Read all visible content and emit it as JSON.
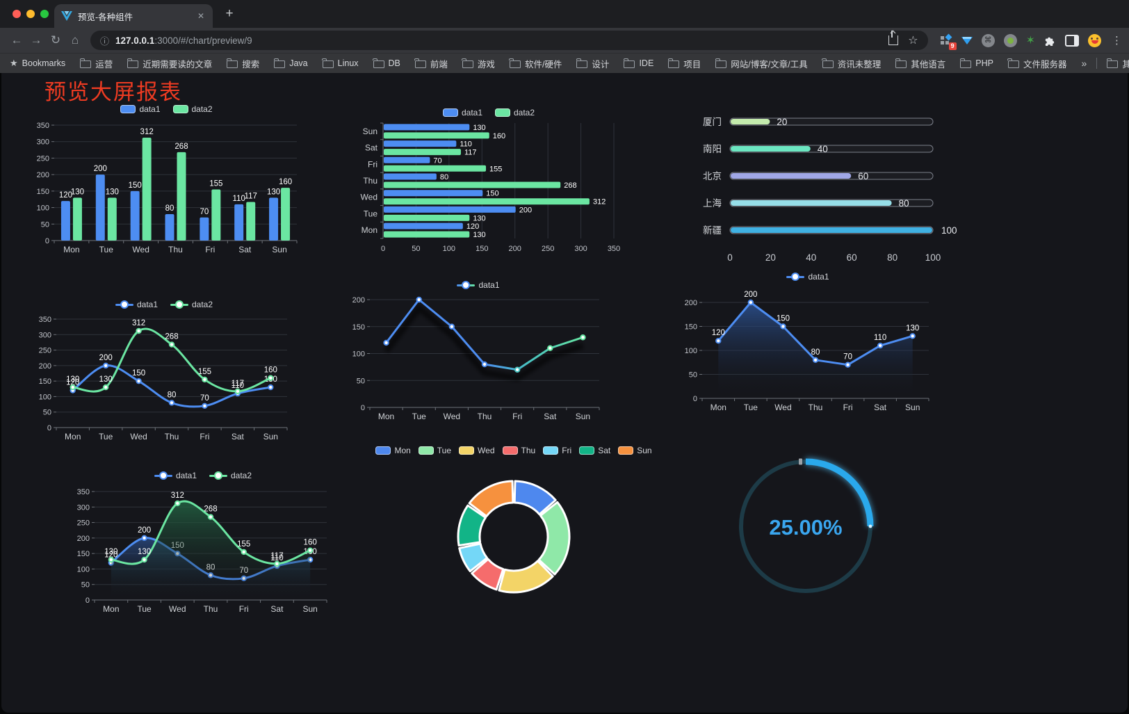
{
  "browser": {
    "tab": {
      "title": "预览-各种组件"
    },
    "url": {
      "host": "127.0.0.1",
      "rest": ":3000/#/chart/preview/9"
    },
    "ext_badge": "9",
    "bookmarks_label": "Bookmarks",
    "bookmarks": [
      "运营",
      "近期需要读的文章",
      "搜索",
      "Java",
      "Linux",
      "DB",
      "前端",
      "游戏",
      "软件/硬件",
      "设计",
      "IDE",
      "项目",
      "网站/博客/文章/工具",
      "资讯未整理",
      "其他语言",
      "PHP",
      "文件服务器"
    ],
    "overflow": "»",
    "other_bookmarks": "其他书签"
  },
  "icons": {
    "back": "←",
    "forward": "→",
    "reload": "↻",
    "home": "⌂",
    "info": "ⓘ",
    "close": "✕",
    "new_tab": "+",
    "star_outline": "☆",
    "menu_dots": "⋮",
    "bookmarks_star": "★",
    "cmd": "⌘",
    "green_star": "✶"
  },
  "page": {
    "title": "预览大屏报表",
    "title_color": "#ee3b22"
  },
  "chart_data": [
    {
      "id": "bar-grouped",
      "type": "bar",
      "categories": [
        "Mon",
        "Tue",
        "Wed",
        "Thu",
        "Fri",
        "Sat",
        "Sun"
      ],
      "series": [
        {
          "name": "data1",
          "color": "#4d8df2",
          "values": [
            120,
            200,
            150,
            80,
            70,
            110,
            130
          ]
        },
        {
          "name": "data2",
          "color": "#6be6a2",
          "values": [
            130,
            130,
            312,
            268,
            155,
            117,
            160
          ]
        }
      ],
      "ylim": [
        0,
        350
      ],
      "ystep": 50,
      "grid": true,
      "legend": "top"
    },
    {
      "id": "hbar-grouped",
      "type": "bar",
      "orientation": "horizontal",
      "categories": [
        "Mon",
        "Tue",
        "Wed",
        "Thu",
        "Fri",
        "Sat",
        "Sun"
      ],
      "series": [
        {
          "name": "data1",
          "color": "#4d8df2",
          "values": [
            120,
            200,
            150,
            80,
            70,
            110,
            130
          ]
        },
        {
          "name": "data2",
          "color": "#6be6a2",
          "values": [
            130,
            130,
            312,
            268,
            155,
            117,
            160
          ]
        }
      ],
      "xlim": [
        0,
        350
      ],
      "xstep": 50,
      "grid": true,
      "legend": "top"
    },
    {
      "id": "progress-cities",
      "type": "bar",
      "orientation": "progress",
      "rows": [
        {
          "label": "厦门",
          "value": 20,
          "color": "#c4ebad"
        },
        {
          "label": "南阳",
          "value": 40,
          "color": "#6be6c1"
        },
        {
          "label": "北京",
          "value": 60,
          "color": "#a0a7e6"
        },
        {
          "label": "上海",
          "value": 80,
          "color": "#96dee8"
        },
        {
          "label": "新疆",
          "value": 100,
          "color": "#3fb1e3"
        }
      ],
      "xlim": [
        0,
        100
      ],
      "xstep": 20
    },
    {
      "id": "line-two",
      "type": "line",
      "smooth": true,
      "categories": [
        "Mon",
        "Tue",
        "Wed",
        "Thu",
        "Fri",
        "Sat",
        "Sun"
      ],
      "series": [
        {
          "name": "data1",
          "color": "#4d8df2",
          "values": [
            120,
            200,
            150,
            80,
            70,
            110,
            130
          ]
        },
        {
          "name": "data2",
          "color": "#6be6a2",
          "values": [
            130,
            130,
            312,
            268,
            155,
            117,
            160
          ]
        }
      ],
      "ylim": [
        0,
        350
      ],
      "ystep": 50,
      "labels": true,
      "legend": "top"
    },
    {
      "id": "line-gradient",
      "type": "line",
      "smooth": false,
      "categories": [
        "Mon",
        "Tue",
        "Wed",
        "Thu",
        "Fri",
        "Sat",
        "Sun"
      ],
      "series": [
        {
          "name": "data1",
          "color": "#4d8df2",
          "gradient": [
            "#4d8df2",
            "#66e6a3"
          ],
          "values": [
            120,
            200,
            150,
            80,
            70,
            110,
            130
          ]
        }
      ],
      "ylim": [
        0,
        200
      ],
      "ystep": 50,
      "labels": false,
      "legend": "top"
    },
    {
      "id": "area-one",
      "type": "area",
      "smooth": false,
      "categories": [
        "Mon",
        "Tue",
        "Wed",
        "Thu",
        "Fri",
        "Sat",
        "Sun"
      ],
      "series": [
        {
          "name": "data1",
          "color": "#4d8df2",
          "values": [
            120,
            200,
            150,
            80,
            70,
            110,
            130
          ],
          "area": [
            "rgba(45,84,150,0.85)",
            "rgba(21,22,27,0)"
          ]
        }
      ],
      "ylim": [
        0,
        200
      ],
      "ystep": 50,
      "labels": true,
      "legend": "top"
    },
    {
      "id": "area-two",
      "type": "area",
      "smooth": true,
      "categories": [
        "Mon",
        "Tue",
        "Wed",
        "Thu",
        "Fri",
        "Sat",
        "Sun"
      ],
      "series": [
        {
          "name": "data1",
          "color": "#4d8df2",
          "values": [
            120,
            200,
            150,
            80,
            70,
            110,
            130
          ],
          "area": [
            "rgba(45,84,150,0.7)",
            "rgba(21,22,27,0)"
          ]
        },
        {
          "name": "data2",
          "color": "#6be6a2",
          "values": [
            130,
            130,
            312,
            268,
            155,
            117,
            160
          ],
          "area": [
            "rgba(36,105,70,0.8)",
            "rgba(21,22,27,0)"
          ]
        }
      ],
      "ylim": [
        0,
        350
      ],
      "ystep": 50,
      "labels": true,
      "legend": "top"
    },
    {
      "id": "donut-week",
      "type": "pie",
      "slices": [
        {
          "label": "Mon",
          "value": 120,
          "color": "#4e88ee"
        },
        {
          "label": "Tue",
          "value": 200,
          "color": "#8fe8a8"
        },
        {
          "label": "Wed",
          "value": 150,
          "color": "#f3d467"
        },
        {
          "label": "Thu",
          "value": 80,
          "color": "#f56c6c"
        },
        {
          "label": "Fri",
          "value": 70,
          "color": "#74d7f7"
        },
        {
          "label": "Sat",
          "value": 110,
          "color": "#12b487"
        },
        {
          "label": "Sun",
          "value": 130,
          "color": "#f6913e"
        }
      ],
      "legend": "top"
    },
    {
      "id": "gauge-percent",
      "type": "gauge",
      "value": 25,
      "display": "25.00%",
      "color": "#2aa9ec",
      "glow_color": "#52c5ff",
      "track_color": "#1d3b47",
      "text_color": "#3aa6ef"
    }
  ]
}
